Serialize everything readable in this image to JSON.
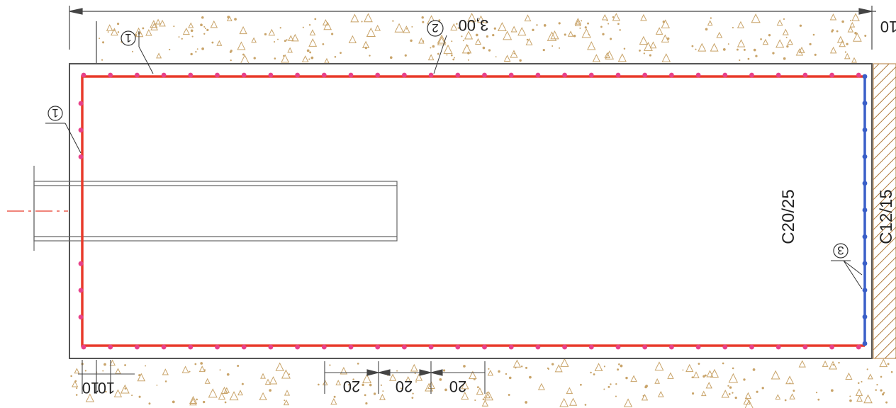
{
  "drawing": {
    "dimensions": {
      "overall_length": "3,00",
      "edge_right": "10",
      "spacing_a": "20",
      "spacing_b": "20",
      "spacing_c": "20",
      "edge_left_1": "10",
      "edge_left_2": "10"
    },
    "materials": {
      "main_concrete": "C20/25",
      "lean_concrete": "C12/15"
    },
    "markers": {
      "rebar_1": "1",
      "rebar_2": "2",
      "rebar_3": "3"
    },
    "colors": {
      "main_rebar": "#e83a2a",
      "rebar_dots": "#e8428a",
      "secondary_rebar": "#3a5fc8",
      "hatch": "#b07a3a",
      "outline": "#555555",
      "soil_speckle": "#c9a46a",
      "centerline": "#e83a2a"
    }
  }
}
